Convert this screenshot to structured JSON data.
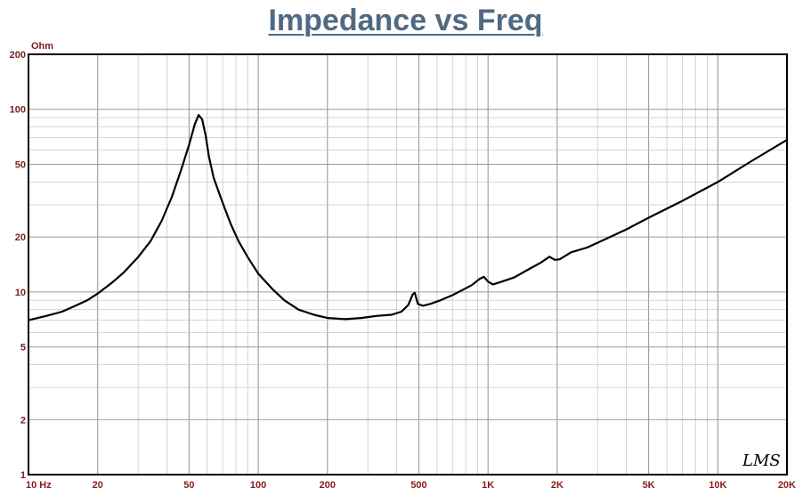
{
  "chart_data": {
    "type": "line",
    "title": "Impedance vs Freq",
    "ylabel": "Ohm",
    "xscale": "log",
    "yscale": "log",
    "xlim": [
      10,
      20000
    ],
    "ylim": [
      1,
      200
    ],
    "grid": true,
    "x_ticks": [
      {
        "v": 10,
        "label": "10  Hz"
      },
      {
        "v": 20,
        "label": "20"
      },
      {
        "v": 50,
        "label": "50"
      },
      {
        "v": 100,
        "label": "100"
      },
      {
        "v": 200,
        "label": "200"
      },
      {
        "v": 500,
        "label": "500"
      },
      {
        "v": 1000,
        "label": "1K"
      },
      {
        "v": 2000,
        "label": "2K"
      },
      {
        "v": 5000,
        "label": "5K"
      },
      {
        "v": 10000,
        "label": "10K"
      },
      {
        "v": 20000,
        "label": "20K"
      }
    ],
    "y_ticks": [
      {
        "v": 200,
        "label": "200"
      },
      {
        "v": 100,
        "label": "100"
      },
      {
        "v": 50,
        "label": "50"
      },
      {
        "v": 20,
        "label": "20"
      },
      {
        "v": 10,
        "label": "10"
      },
      {
        "v": 5,
        "label": "5"
      },
      {
        "v": 2,
        "label": "2"
      },
      {
        "v": 1,
        "label": "1"
      }
    ],
    "series": [
      {
        "color": "#000000",
        "points": [
          [
            10,
            7.0
          ],
          [
            12,
            7.4
          ],
          [
            14,
            7.8
          ],
          [
            16,
            8.4
          ],
          [
            18,
            9.0
          ],
          [
            20,
            9.8
          ],
          [
            23,
            11.2
          ],
          [
            26,
            12.8
          ],
          [
            30,
            15.5
          ],
          [
            34,
            19.0
          ],
          [
            38,
            24.5
          ],
          [
            42,
            33
          ],
          [
            46,
            46
          ],
          [
            50,
            64
          ],
          [
            53,
            83
          ],
          [
            55,
            93
          ],
          [
            57,
            88
          ],
          [
            59,
            72
          ],
          [
            61,
            55
          ],
          [
            64,
            42
          ],
          [
            68,
            34
          ],
          [
            72,
            28
          ],
          [
            76,
            23.5
          ],
          [
            82,
            19
          ],
          [
            90,
            15.5
          ],
          [
            100,
            12.6
          ],
          [
            115,
            10.4
          ],
          [
            130,
            9.0
          ],
          [
            150,
            8.0
          ],
          [
            175,
            7.5
          ],
          [
            200,
            7.2
          ],
          [
            240,
            7.1
          ],
          [
            280,
            7.2
          ],
          [
            330,
            7.4
          ],
          [
            380,
            7.5
          ],
          [
            420,
            7.8
          ],
          [
            450,
            8.5
          ],
          [
            470,
            9.7
          ],
          [
            480,
            9.9
          ],
          [
            495,
            8.6
          ],
          [
            520,
            8.4
          ],
          [
            560,
            8.6
          ],
          [
            620,
            9.0
          ],
          [
            700,
            9.6
          ],
          [
            780,
            10.3
          ],
          [
            850,
            10.9
          ],
          [
            920,
            11.8
          ],
          [
            960,
            12.1
          ],
          [
            1000,
            11.4
          ],
          [
            1050,
            11.0
          ],
          [
            1150,
            11.4
          ],
          [
            1300,
            12.0
          ],
          [
            1500,
            13.3
          ],
          [
            1700,
            14.5
          ],
          [
            1850,
            15.6
          ],
          [
            1950,
            15.0
          ],
          [
            2050,
            15.1
          ],
          [
            2300,
            16.5
          ],
          [
            2700,
            17.5
          ],
          [
            3200,
            19.3
          ],
          [
            4000,
            22.0
          ],
          [
            5000,
            25.5
          ],
          [
            7000,
            31.5
          ],
          [
            10000,
            40
          ],
          [
            14000,
            52
          ],
          [
            20000,
            68
          ]
        ]
      }
    ]
  },
  "watermark": "LMS"
}
